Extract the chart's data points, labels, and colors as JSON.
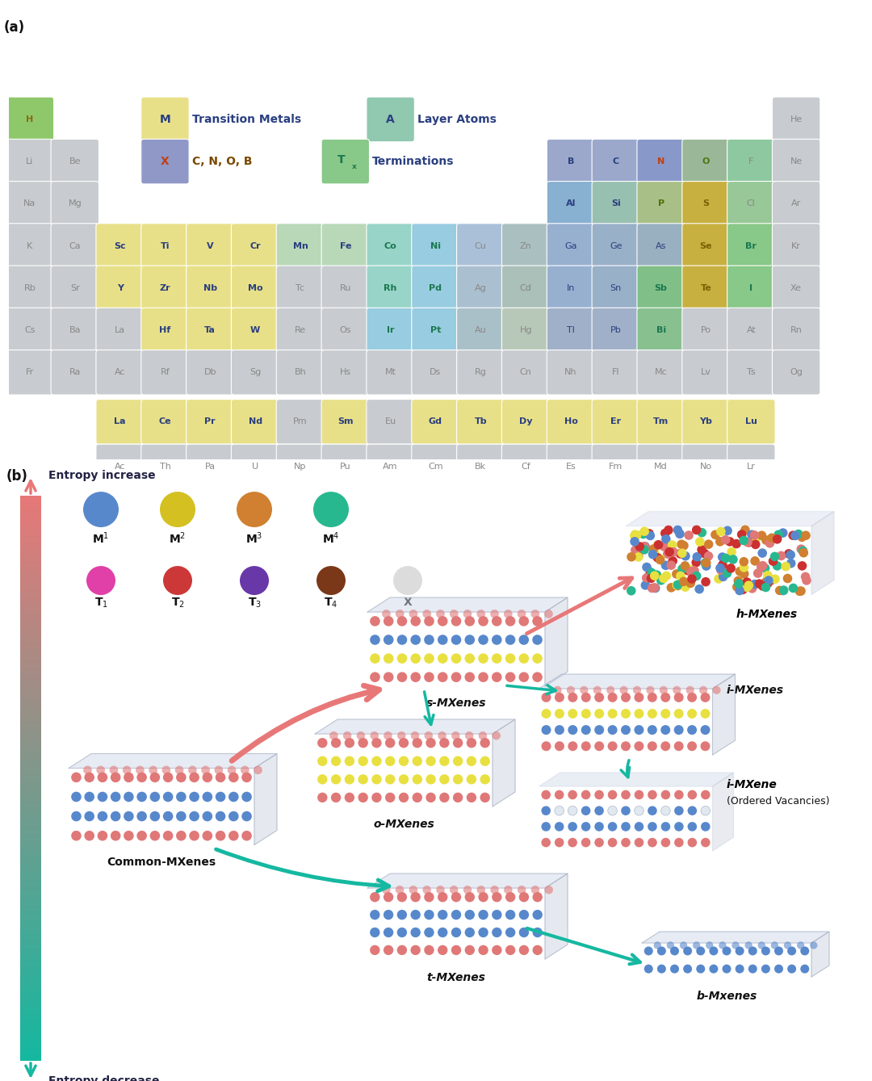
{
  "elements_main": [
    {
      "sym": "H",
      "row": 1,
      "col": 1,
      "bg": "#8ec86a",
      "tc": "#8b6914",
      "bold": true
    },
    {
      "sym": "He",
      "row": 1,
      "col": 18,
      "bg": "#c8ccd0",
      "tc": "#888888",
      "bold": false
    },
    {
      "sym": "Li",
      "row": 2,
      "col": 1,
      "bg": "#c8ccd0",
      "tc": "#888888",
      "bold": false
    },
    {
      "sym": "Be",
      "row": 2,
      "col": 2,
      "bg": "#c8ccd0",
      "tc": "#888888",
      "bold": false
    },
    {
      "sym": "B",
      "row": 2,
      "col": 13,
      "bg": "#9ba8cc",
      "tc": "#2a3f80",
      "bold": true
    },
    {
      "sym": "C",
      "row": 2,
      "col": 14,
      "bg": "#9ba8cc",
      "tc": "#2a3f80",
      "bold": true
    },
    {
      "sym": "N",
      "row": 2,
      "col": 15,
      "bg": "#8898c8",
      "tc": "#c04010",
      "bold": true
    },
    {
      "sym": "O",
      "row": 2,
      "col": 16,
      "bg": "#9ab898",
      "tc": "#4a7810",
      "bold": true
    },
    {
      "sym": "F",
      "row": 2,
      "col": 17,
      "bg": "#8ec8a0",
      "tc": "#888888",
      "bold": false
    },
    {
      "sym": "Ne",
      "row": 2,
      "col": 18,
      "bg": "#c8ccd0",
      "tc": "#888888",
      "bold": false
    },
    {
      "sym": "Na",
      "row": 3,
      "col": 1,
      "bg": "#c8ccd0",
      "tc": "#888888",
      "bold": false
    },
    {
      "sym": "Mg",
      "row": 3,
      "col": 2,
      "bg": "#c8ccd0",
      "tc": "#888888",
      "bold": false
    },
    {
      "sym": "Al",
      "row": 3,
      "col": 13,
      "bg": "#88b0d0",
      "tc": "#2a3f80",
      "bold": true
    },
    {
      "sym": "Si",
      "row": 3,
      "col": 14,
      "bg": "#98c0b0",
      "tc": "#2a3f80",
      "bold": true
    },
    {
      "sym": "P",
      "row": 3,
      "col": 15,
      "bg": "#a8c088",
      "tc": "#507000",
      "bold": true
    },
    {
      "sym": "S",
      "row": 3,
      "col": 16,
      "bg": "#c8b040",
      "tc": "#7a6000",
      "bold": true
    },
    {
      "sym": "Cl",
      "row": 3,
      "col": 17,
      "bg": "#98c898",
      "tc": "#888888",
      "bold": false
    },
    {
      "sym": "Ar",
      "row": 3,
      "col": 18,
      "bg": "#c8ccd0",
      "tc": "#888888",
      "bold": false
    },
    {
      "sym": "K",
      "row": 4,
      "col": 1,
      "bg": "#c8ccd0",
      "tc": "#888888",
      "bold": false
    },
    {
      "sym": "Ca",
      "row": 4,
      "col": 2,
      "bg": "#c8ccd0",
      "tc": "#888888",
      "bold": false
    },
    {
      "sym": "Sc",
      "row": 4,
      "col": 3,
      "bg": "#e8e088",
      "tc": "#2a3f80",
      "bold": true
    },
    {
      "sym": "Ti",
      "row": 4,
      "col": 4,
      "bg": "#e8e088",
      "tc": "#2a3f80",
      "bold": true
    },
    {
      "sym": "V",
      "row": 4,
      "col": 5,
      "bg": "#e8e088",
      "tc": "#2a3f80",
      "bold": true
    },
    {
      "sym": "Cr",
      "row": 4,
      "col": 6,
      "bg": "#e8e088",
      "tc": "#2a3f80",
      "bold": true
    },
    {
      "sym": "Mn",
      "row": 4,
      "col": 7,
      "bg": "#b8d8b8",
      "tc": "#2a3f80",
      "bold": true
    },
    {
      "sym": "Fe",
      "row": 4,
      "col": 8,
      "bg": "#b8d8b8",
      "tc": "#2a3f80",
      "bold": true
    },
    {
      "sym": "Co",
      "row": 4,
      "col": 9,
      "bg": "#98d4c8",
      "tc": "#1a7850",
      "bold": true
    },
    {
      "sym": "Ni",
      "row": 4,
      "col": 10,
      "bg": "#98cce0",
      "tc": "#1a7850",
      "bold": true
    },
    {
      "sym": "Cu",
      "row": 4,
      "col": 11,
      "bg": "#aac0d8",
      "tc": "#888888",
      "bold": false
    },
    {
      "sym": "Zn",
      "row": 4,
      "col": 12,
      "bg": "#aac0c0",
      "tc": "#888888",
      "bold": false
    },
    {
      "sym": "Ga",
      "row": 4,
      "col": 13,
      "bg": "#98b0d0",
      "tc": "#2a3f80",
      "bold": false
    },
    {
      "sym": "Ge",
      "row": 4,
      "col": 14,
      "bg": "#98b0c8",
      "tc": "#2a3f80",
      "bold": false
    },
    {
      "sym": "As",
      "row": 4,
      "col": 15,
      "bg": "#98b0c0",
      "tc": "#2a3f80",
      "bold": false
    },
    {
      "sym": "Se",
      "row": 4,
      "col": 16,
      "bg": "#c8b040",
      "tc": "#7a6000",
      "bold": true
    },
    {
      "sym": "Br",
      "row": 4,
      "col": 17,
      "bg": "#88c888",
      "tc": "#1a7850",
      "bold": true
    },
    {
      "sym": "Kr",
      "row": 4,
      "col": 18,
      "bg": "#c8ccd0",
      "tc": "#888888",
      "bold": false
    },
    {
      "sym": "Rb",
      "row": 5,
      "col": 1,
      "bg": "#c8ccd0",
      "tc": "#888888",
      "bold": false
    },
    {
      "sym": "Sr",
      "row": 5,
      "col": 2,
      "bg": "#c8ccd0",
      "tc": "#888888",
      "bold": false
    },
    {
      "sym": "Y",
      "row": 5,
      "col": 3,
      "bg": "#e8e088",
      "tc": "#2a3f80",
      "bold": true
    },
    {
      "sym": "Zr",
      "row": 5,
      "col": 4,
      "bg": "#e8e088",
      "tc": "#2a3f80",
      "bold": true
    },
    {
      "sym": "Nb",
      "row": 5,
      "col": 5,
      "bg": "#e8e088",
      "tc": "#2a3f80",
      "bold": true
    },
    {
      "sym": "Mo",
      "row": 5,
      "col": 6,
      "bg": "#e8e088",
      "tc": "#2a3f80",
      "bold": true
    },
    {
      "sym": "Tc",
      "row": 5,
      "col": 7,
      "bg": "#c8ccd0",
      "tc": "#888888",
      "bold": false
    },
    {
      "sym": "Ru",
      "row": 5,
      "col": 8,
      "bg": "#c8ccd0",
      "tc": "#888888",
      "bold": false
    },
    {
      "sym": "Rh",
      "row": 5,
      "col": 9,
      "bg": "#98d4c8",
      "tc": "#1a7850",
      "bold": true
    },
    {
      "sym": "Pd",
      "row": 5,
      "col": 10,
      "bg": "#98cce0",
      "tc": "#1a7850",
      "bold": true
    },
    {
      "sym": "Ag",
      "row": 5,
      "col": 11,
      "bg": "#aac0d0",
      "tc": "#888888",
      "bold": false
    },
    {
      "sym": "Cd",
      "row": 5,
      "col": 12,
      "bg": "#aac0b8",
      "tc": "#888888",
      "bold": false
    },
    {
      "sym": "In",
      "row": 5,
      "col": 13,
      "bg": "#98b0d0",
      "tc": "#2a3f80",
      "bold": false
    },
    {
      "sym": "Sn",
      "row": 5,
      "col": 14,
      "bg": "#98b0c8",
      "tc": "#2a3f80",
      "bold": false
    },
    {
      "sym": "Sb",
      "row": 5,
      "col": 15,
      "bg": "#80c088",
      "tc": "#1a7850",
      "bold": true
    },
    {
      "sym": "Te",
      "row": 5,
      "col": 16,
      "bg": "#c8b040",
      "tc": "#7a6000",
      "bold": true
    },
    {
      "sym": "I",
      "row": 5,
      "col": 17,
      "bg": "#88c888",
      "tc": "#1a7850",
      "bold": true
    },
    {
      "sym": "Xe",
      "row": 5,
      "col": 18,
      "bg": "#c8ccd0",
      "tc": "#888888",
      "bold": false
    },
    {
      "sym": "Cs",
      "row": 6,
      "col": 1,
      "bg": "#c8ccd0",
      "tc": "#888888",
      "bold": false
    },
    {
      "sym": "Ba",
      "row": 6,
      "col": 2,
      "bg": "#c8ccd0",
      "tc": "#888888",
      "bold": false
    },
    {
      "sym": "La",
      "row": 6,
      "col": 3,
      "bg": "#c8ccd0",
      "tc": "#888888",
      "bold": false
    },
    {
      "sym": "Hf",
      "row": 6,
      "col": 4,
      "bg": "#e8e088",
      "tc": "#2a3f80",
      "bold": true
    },
    {
      "sym": "Ta",
      "row": 6,
      "col": 5,
      "bg": "#e8e088",
      "tc": "#2a3f80",
      "bold": true
    },
    {
      "sym": "W",
      "row": 6,
      "col": 6,
      "bg": "#e8e088",
      "tc": "#2a3f80",
      "bold": true
    },
    {
      "sym": "Re",
      "row": 6,
      "col": 7,
      "bg": "#c8ccd0",
      "tc": "#888888",
      "bold": false
    },
    {
      "sym": "Os",
      "row": 6,
      "col": 8,
      "bg": "#c8ccd0",
      "tc": "#888888",
      "bold": false
    },
    {
      "sym": "Ir",
      "row": 6,
      "col": 9,
      "bg": "#98cce0",
      "tc": "#1a7850",
      "bold": true
    },
    {
      "sym": "Pt",
      "row": 6,
      "col": 10,
      "bg": "#98cce0",
      "tc": "#1a7850",
      "bold": true
    },
    {
      "sym": "Au",
      "row": 6,
      "col": 11,
      "bg": "#aac0c8",
      "tc": "#888888",
      "bold": false
    },
    {
      "sym": "Hg",
      "row": 6,
      "col": 12,
      "bg": "#b8c8b8",
      "tc": "#888888",
      "bold": false
    },
    {
      "sym": "Tl",
      "row": 6,
      "col": 13,
      "bg": "#a0b0c8",
      "tc": "#2a3f80",
      "bold": false
    },
    {
      "sym": "Pb",
      "row": 6,
      "col": 14,
      "bg": "#a0b0c8",
      "tc": "#2a3f80",
      "bold": false
    },
    {
      "sym": "Bi",
      "row": 6,
      "col": 15,
      "bg": "#88c090",
      "tc": "#1a7850",
      "bold": true
    },
    {
      "sym": "Po",
      "row": 6,
      "col": 16,
      "bg": "#c8ccd0",
      "tc": "#888888",
      "bold": false
    },
    {
      "sym": "At",
      "row": 6,
      "col": 17,
      "bg": "#c8ccd0",
      "tc": "#888888",
      "bold": false
    },
    {
      "sym": "Rn",
      "row": 6,
      "col": 18,
      "bg": "#c8ccd0",
      "tc": "#888888",
      "bold": false
    },
    {
      "sym": "Fr",
      "row": 7,
      "col": 1,
      "bg": "#c8ccd0",
      "tc": "#888888",
      "bold": false
    },
    {
      "sym": "Ra",
      "row": 7,
      "col": 2,
      "bg": "#c8ccd0",
      "tc": "#888888",
      "bold": false
    },
    {
      "sym": "Ac",
      "row": 7,
      "col": 3,
      "bg": "#c8ccd0",
      "tc": "#888888",
      "bold": false
    },
    {
      "sym": "Rf",
      "row": 7,
      "col": 4,
      "bg": "#c8ccd0",
      "tc": "#888888",
      "bold": false
    },
    {
      "sym": "Db",
      "row": 7,
      "col": 5,
      "bg": "#c8ccd0",
      "tc": "#888888",
      "bold": false
    },
    {
      "sym": "Sg",
      "row": 7,
      "col": 6,
      "bg": "#c8ccd0",
      "tc": "#888888",
      "bold": false
    },
    {
      "sym": "Bh",
      "row": 7,
      "col": 7,
      "bg": "#c8ccd0",
      "tc": "#888888",
      "bold": false
    },
    {
      "sym": "Hs",
      "row": 7,
      "col": 8,
      "bg": "#c8ccd0",
      "tc": "#888888",
      "bold": false
    },
    {
      "sym": "Mt",
      "row": 7,
      "col": 9,
      "bg": "#c8ccd0",
      "tc": "#888888",
      "bold": false
    },
    {
      "sym": "Ds",
      "row": 7,
      "col": 10,
      "bg": "#c8ccd0",
      "tc": "#888888",
      "bold": false
    },
    {
      "sym": "Rg",
      "row": 7,
      "col": 11,
      "bg": "#c8ccd0",
      "tc": "#888888",
      "bold": false
    },
    {
      "sym": "Cn",
      "row": 7,
      "col": 12,
      "bg": "#c8ccd0",
      "tc": "#888888",
      "bold": false
    },
    {
      "sym": "Nh",
      "row": 7,
      "col": 13,
      "bg": "#c8ccd0",
      "tc": "#888888",
      "bold": false
    },
    {
      "sym": "Fl",
      "row": 7,
      "col": 14,
      "bg": "#c8ccd0",
      "tc": "#888888",
      "bold": false
    },
    {
      "sym": "Mc",
      "row": 7,
      "col": 15,
      "bg": "#c8ccd0",
      "tc": "#888888",
      "bold": false
    },
    {
      "sym": "Lv",
      "row": 7,
      "col": 16,
      "bg": "#c8ccd0",
      "tc": "#888888",
      "bold": false
    },
    {
      "sym": "Ts",
      "row": 7,
      "col": 17,
      "bg": "#c8ccd0",
      "tc": "#888888",
      "bold": false
    },
    {
      "sym": "Og",
      "row": 7,
      "col": 18,
      "bg": "#c8ccd0",
      "tc": "#888888",
      "bold": false
    }
  ],
  "lanthanides": [
    {
      "sym": "La",
      "bg": "#e8e088",
      "tc": "#2a3f80",
      "bold": true
    },
    {
      "sym": "Ce",
      "bg": "#e8e088",
      "tc": "#2a3f80",
      "bold": true
    },
    {
      "sym": "Pr",
      "bg": "#e8e088",
      "tc": "#2a3f80",
      "bold": true
    },
    {
      "sym": "Nd",
      "bg": "#e8e088",
      "tc": "#2a3f80",
      "bold": true
    },
    {
      "sym": "Pm",
      "bg": "#c8ccd0",
      "tc": "#888888",
      "bold": false
    },
    {
      "sym": "Sm",
      "bg": "#e8e088",
      "tc": "#2a3f80",
      "bold": true
    },
    {
      "sym": "Eu",
      "bg": "#c8ccd0",
      "tc": "#888888",
      "bold": false
    },
    {
      "sym": "Gd",
      "bg": "#e8e088",
      "tc": "#2a3f80",
      "bold": true
    },
    {
      "sym": "Tb",
      "bg": "#e8e088",
      "tc": "#2a3f80",
      "bold": true
    },
    {
      "sym": "Dy",
      "bg": "#e8e088",
      "tc": "#2a3f80",
      "bold": true
    },
    {
      "sym": "Ho",
      "bg": "#e8e088",
      "tc": "#2a3f80",
      "bold": true
    },
    {
      "sym": "Er",
      "bg": "#e8e088",
      "tc": "#2a3f80",
      "bold": true
    },
    {
      "sym": "Tm",
      "bg": "#e8e088",
      "tc": "#2a3f80",
      "bold": true
    },
    {
      "sym": "Yb",
      "bg": "#e8e088",
      "tc": "#2a3f80",
      "bold": true
    },
    {
      "sym": "Lu",
      "bg": "#e8e088",
      "tc": "#2a3f80",
      "bold": true
    }
  ],
  "actinides": [
    {
      "sym": "Ac",
      "bg": "#c8ccd0",
      "tc": "#888888",
      "bold": false
    },
    {
      "sym": "Th",
      "bg": "#c8ccd0",
      "tc": "#888888",
      "bold": false
    },
    {
      "sym": "Pa",
      "bg": "#c8ccd0",
      "tc": "#888888",
      "bold": false
    },
    {
      "sym": "U",
      "bg": "#c8ccd0",
      "tc": "#888888",
      "bold": false
    },
    {
      "sym": "Np",
      "bg": "#c8ccd0",
      "tc": "#888888",
      "bold": false
    },
    {
      "sym": "Pu",
      "bg": "#c8ccd0",
      "tc": "#888888",
      "bold": false
    },
    {
      "sym": "Am",
      "bg": "#c8ccd0",
      "tc": "#888888",
      "bold": false
    },
    {
      "sym": "Cm",
      "bg": "#c8ccd0",
      "tc": "#888888",
      "bold": false
    },
    {
      "sym": "Bk",
      "bg": "#c8ccd0",
      "tc": "#888888",
      "bold": false
    },
    {
      "sym": "Cf",
      "bg": "#c8ccd0",
      "tc": "#888888",
      "bold": false
    },
    {
      "sym": "Es",
      "bg": "#c8ccd0",
      "tc": "#888888",
      "bold": false
    },
    {
      "sym": "Fm",
      "bg": "#c8ccd0",
      "tc": "#888888",
      "bold": false
    },
    {
      "sym": "Md",
      "bg": "#c8ccd0",
      "tc": "#888888",
      "bold": false
    },
    {
      "sym": "No",
      "bg": "#c8ccd0",
      "tc": "#888888",
      "bold": false
    },
    {
      "sym": "Lr",
      "bg": "#c8ccd0",
      "tc": "#888888",
      "bold": false
    }
  ]
}
